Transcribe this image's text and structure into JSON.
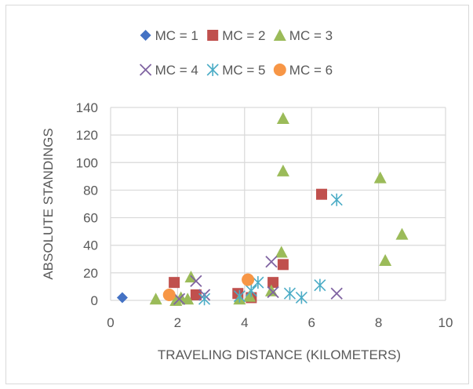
{
  "chart_data": {
    "type": "scatter",
    "title": "",
    "xlabel": "TRAVELING DISTANCE (KILOMETERS)",
    "ylabel": "ABSOLUTE STANDINGS",
    "xlim": [
      0,
      10
    ],
    "ylim": [
      0,
      140
    ],
    "xticks": [
      0,
      2,
      4,
      6,
      8,
      10
    ],
    "yticks": [
      0,
      20,
      40,
      60,
      80,
      100,
      120,
      140
    ],
    "grid": "vertical-and-horizontal",
    "legend_position": "top",
    "series": [
      {
        "name": "MC = 1",
        "marker": "diamond",
        "color": "#4472c4",
        "points": [
          [
            0.35,
            2
          ]
        ]
      },
      {
        "name": "MC = 2",
        "marker": "square",
        "color": "#c0504d",
        "points": [
          [
            1.9,
            13
          ],
          [
            2.55,
            4
          ],
          [
            3.8,
            5
          ],
          [
            4.2,
            2
          ],
          [
            4.85,
            13
          ],
          [
            5.15,
            26
          ],
          [
            6.3,
            77
          ]
        ]
      },
      {
        "name": "MC = 3",
        "marker": "triangle",
        "color": "#9bbb59",
        "points": [
          [
            1.35,
            1
          ],
          [
            1.95,
            0
          ],
          [
            2.1,
            2
          ],
          [
            2.3,
            1
          ],
          [
            2.4,
            17
          ],
          [
            3.85,
            1
          ],
          [
            4.15,
            3
          ],
          [
            4.8,
            7
          ],
          [
            5.1,
            35
          ],
          [
            5.15,
            132
          ],
          [
            5.15,
            94
          ],
          [
            8.05,
            89
          ],
          [
            8.2,
            29
          ],
          [
            8.7,
            48
          ]
        ]
      },
      {
        "name": "MC = 4",
        "marker": "x",
        "color": "#8064a2",
        "points": [
          [
            2.05,
            1
          ],
          [
            2.55,
            14
          ],
          [
            2.8,
            4
          ],
          [
            4.8,
            28
          ],
          [
            4.85,
            6
          ],
          [
            6.75,
            5
          ]
        ]
      },
      {
        "name": "MC = 5",
        "marker": "star",
        "color": "#4bacc6",
        "points": [
          [
            2.8,
            1
          ],
          [
            3.85,
            3
          ],
          [
            4.2,
            7
          ],
          [
            4.4,
            13
          ],
          [
            5.35,
            5
          ],
          [
            5.7,
            2
          ],
          [
            6.25,
            11
          ],
          [
            6.75,
            73
          ]
        ]
      },
      {
        "name": "MC = 6",
        "marker": "circle",
        "color": "#f79646",
        "points": [
          [
            1.75,
            4
          ],
          [
            4.1,
            15
          ]
        ]
      }
    ]
  }
}
